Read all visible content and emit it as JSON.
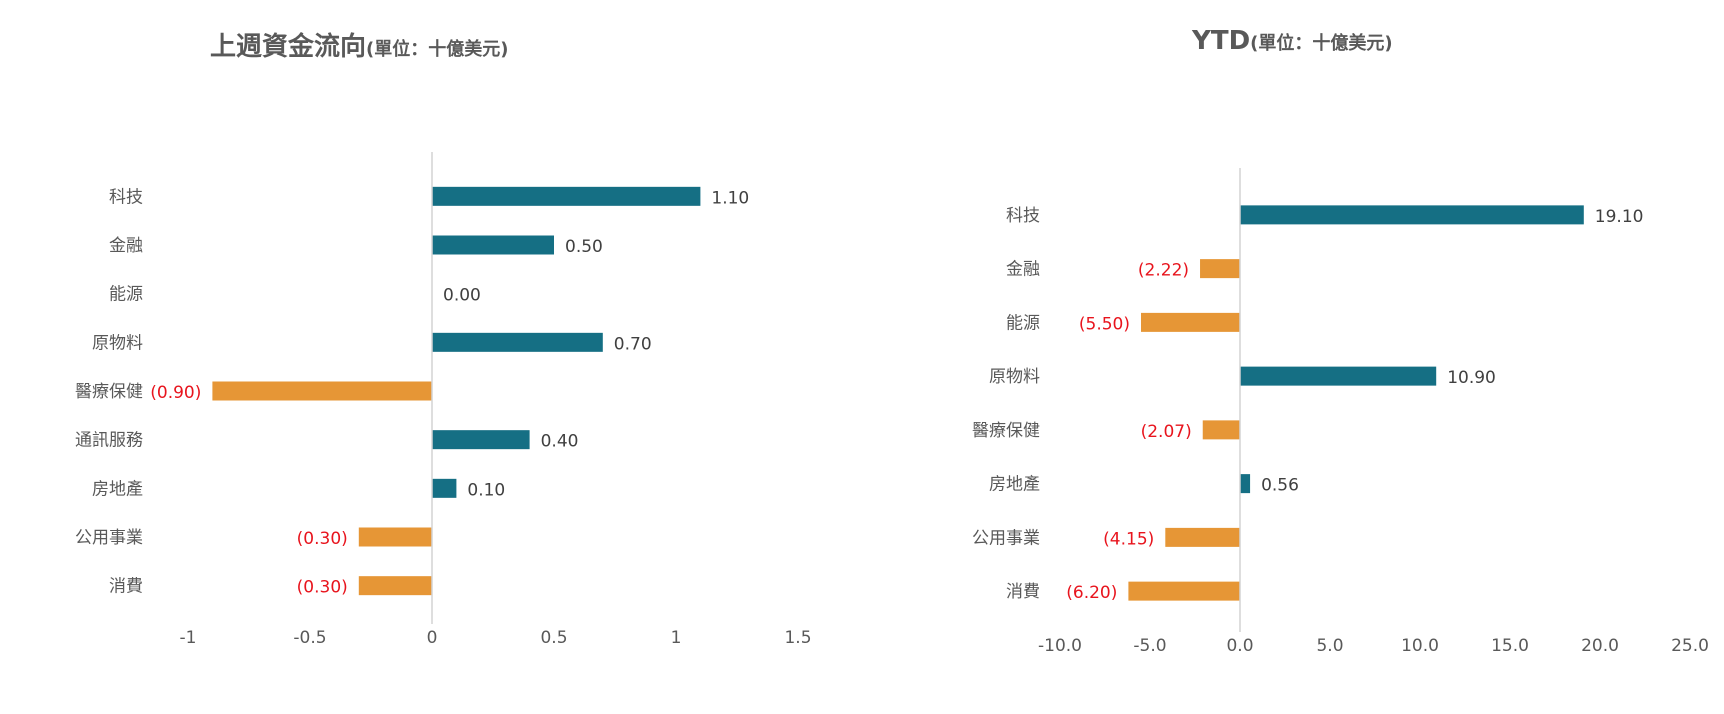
{
  "colors": {
    "positive": "#156f84",
    "negative": "#e69636",
    "negative_label": "#e8141d",
    "positive_label": "#404040",
    "axis": "#d4d4d4",
    "text": "#595959"
  },
  "chart_data": [
    {
      "type": "bar",
      "orientation": "horizontal",
      "title": "上週資金流向",
      "unit": "(單位：十億美元)",
      "categories": [
        "科技",
        "金融",
        "能源",
        "原物料",
        "醫療保健",
        "通訊服務",
        "房地產",
        "公用事業",
        "消費"
      ],
      "values": [
        1.1,
        0.5,
        0.0,
        0.7,
        -0.9,
        0.4,
        0.1,
        -0.3,
        -0.3
      ],
      "value_labels": [
        "1.10",
        "0.50",
        "0.00",
        "0.70",
        "(0.90)",
        "0.40",
        "0.10",
        "(0.30)",
        "(0.30)"
      ],
      "xlim": [
        -1,
        1.5
      ],
      "xticks": [
        -1,
        -0.5,
        0,
        0.5,
        1,
        1.5
      ],
      "xtick_labels": [
        "-1",
        "-0.5",
        "0",
        "0.5",
        "1",
        "1.5"
      ],
      "grid": false,
      "legend": "none"
    },
    {
      "type": "bar",
      "orientation": "horizontal",
      "title": "YTD",
      "unit": "(單位：十億美元)",
      "categories": [
        "科技",
        "金融",
        "能源",
        "原物料",
        "醫療保健",
        "房地產",
        "公用事業",
        "消費"
      ],
      "values": [
        19.1,
        -2.22,
        -5.5,
        10.9,
        -2.07,
        0.56,
        -4.15,
        -6.2
      ],
      "value_labels": [
        "19.10",
        "(2.22)",
        "(5.50)",
        "10.90",
        "(2.07)",
        "0.56",
        "(4.15)",
        "(6.20)"
      ],
      "xlim": [
        -10,
        25
      ],
      "xticks": [
        -10,
        -5,
        0,
        5,
        10,
        15,
        20,
        25
      ],
      "xtick_labels": [
        "-10.0",
        "-5.0",
        "0.0",
        "5.0",
        "10.0",
        "15.0",
        "20.0",
        "25.0"
      ],
      "grid": false,
      "legend": "none"
    }
  ]
}
